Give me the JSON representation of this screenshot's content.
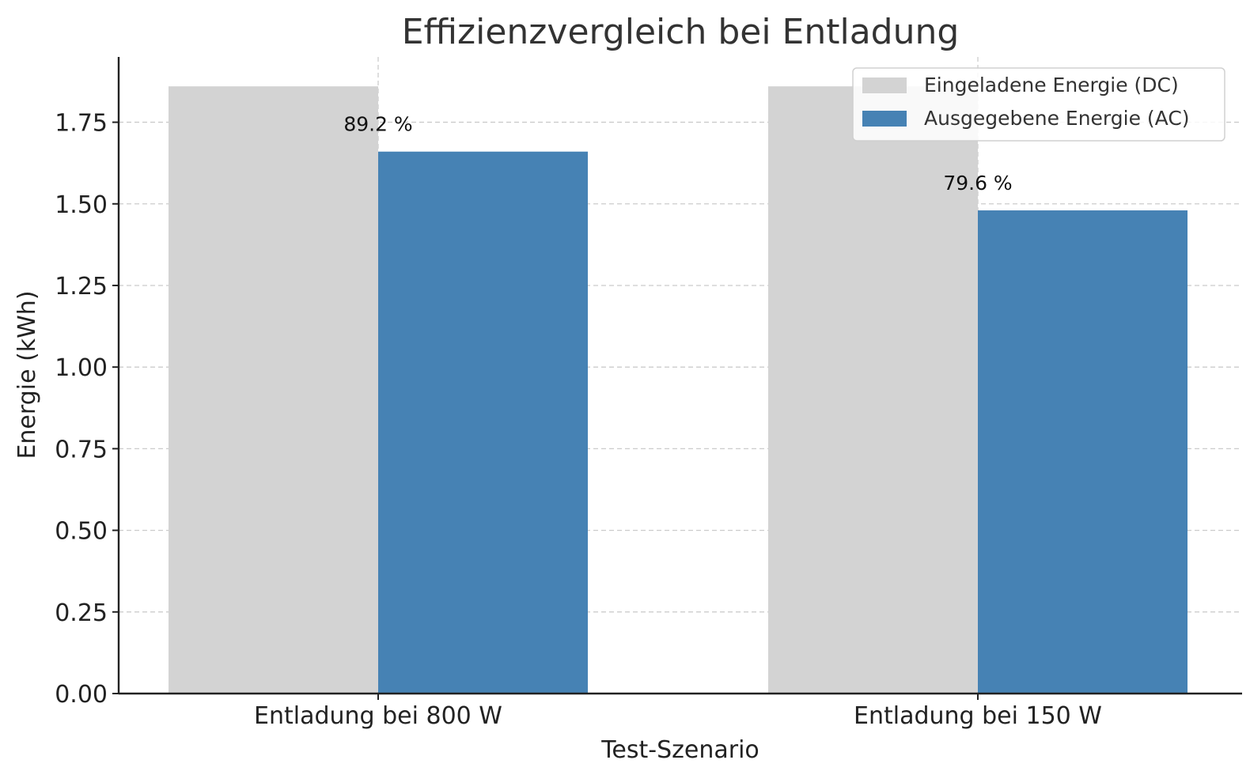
{
  "chart_data": {
    "type": "bar",
    "title": "Effizienzvergleich bei Entladung",
    "xlabel": "Test-Szenario",
    "ylabel": "Energie (kWh)",
    "categories": [
      "Entladung bei 800 W",
      "Entladung bei 150 W"
    ],
    "series": [
      {
        "name": "Eingeladene Energie (DC)",
        "values": [
          1.86,
          1.86
        ],
        "color": "#d3d3d3"
      },
      {
        "name": "Ausgegebene Energie (AC)",
        "values": [
          1.66,
          1.48
        ],
        "color": "#4682b4"
      }
    ],
    "bar_labels": [
      "89.2 %",
      "79.6 %"
    ],
    "ylim": [
      0,
      1.95
    ],
    "yticks": [
      "0.00",
      "0.25",
      "0.50",
      "0.75",
      "1.00",
      "1.25",
      "1.50",
      "1.75"
    ],
    "grid": true,
    "legend_position": "top-right"
  }
}
